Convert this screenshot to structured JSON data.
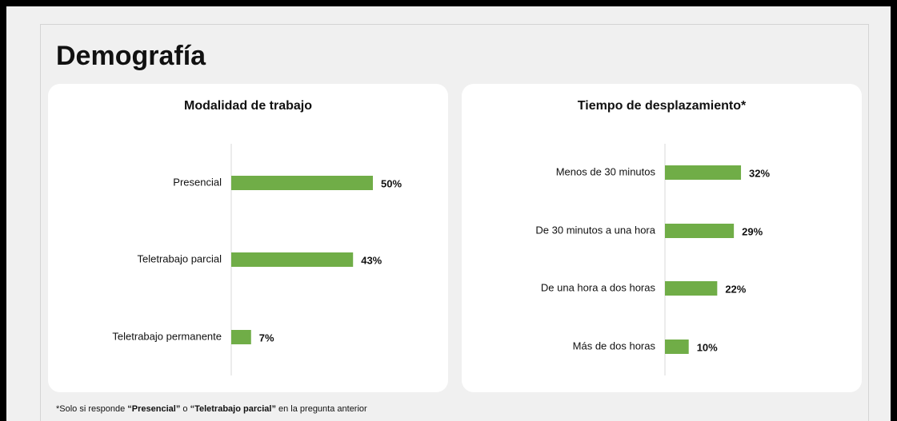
{
  "header": {
    "title": "Demografía"
  },
  "chart_data": [
    {
      "type": "bar",
      "orientation": "horizontal",
      "title": "Modalidad de trabajo",
      "categories": [
        "Presencial",
        "Teletrabajo parcial",
        "Teletrabajo permanente"
      ],
      "values": [
        50,
        43,
        7
      ],
      "value_labels": [
        "50%",
        "43%",
        "7%"
      ],
      "color": "#70ad47",
      "xlim": [
        0,
        100
      ]
    },
    {
      "type": "bar",
      "orientation": "horizontal",
      "title": "Tiempo de desplazamiento*",
      "categories": [
        "Menos de 30 minutos",
        "De 30 minutos a una hora",
        "De una hora a dos horas",
        "Más de dos horas"
      ],
      "values": [
        32,
        29,
        22,
        10
      ],
      "value_labels": [
        "32%",
        "29%",
        "22%",
        "10%"
      ],
      "color": "#70ad47",
      "xlim": [
        0,
        100
      ]
    }
  ],
  "footnote": [
    {
      "text": "*Solo si responde ",
      "bold": false
    },
    {
      "text": "“Presencial”",
      "bold": true
    },
    {
      "text": " o ",
      "bold": false
    },
    {
      "text": "“Teletrabajo parcial”",
      "bold": true
    },
    {
      "text": " en la pregunta anterior",
      "bold": false
    }
  ]
}
